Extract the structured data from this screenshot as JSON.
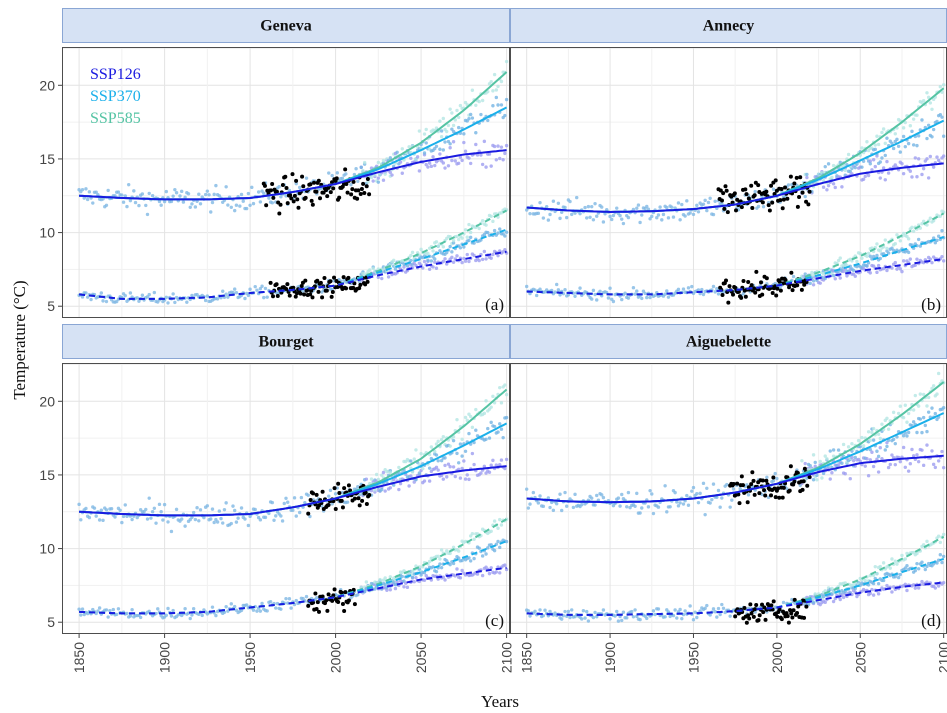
{
  "chart_data": {
    "type": "scatter",
    "xlabel": "Years",
    "ylabel": "Temperature (°C)",
    "xlim": [
      1840,
      2102
    ],
    "ylim": [
      4.2,
      22.6
    ],
    "x_ticks": [
      1850,
      1900,
      1950,
      2000,
      2050,
      2100
    ],
    "y_ticks": [
      5,
      10,
      15,
      20
    ],
    "grid": true,
    "legend": {
      "placement": "top-left of first panel",
      "entries": [
        {
          "name": "SSP126",
          "color": "#1a1ae0"
        },
        {
          "name": "SSP370",
          "color": "#1ab0ea"
        },
        {
          "name": "SSP585",
          "color": "#55c4a4"
        }
      ]
    },
    "observed_color": "#000000",
    "simulated_point_colors": {
      "SSP126": "#9e9ef0",
      "SSP370": "#74b4e4",
      "SSP585": "#b4e6e4"
    },
    "line_styles": {
      "surface": "solid",
      "bottom": "dashed"
    },
    "panels": [
      {
        "title": "Geneva",
        "tag": "(a)",
        "surface_fit": {
          "x": [
            1850,
            1875,
            1900,
            1925,
            1950,
            1975,
            2000,
            2025,
            2050,
            2075,
            2100
          ],
          "SSP126": [
            12.5,
            12.35,
            12.25,
            12.25,
            12.35,
            12.75,
            13.3,
            14.1,
            14.8,
            15.3,
            15.6
          ],
          "SSP370": [
            12.5,
            12.35,
            12.25,
            12.25,
            12.35,
            12.75,
            13.3,
            14.3,
            15.6,
            17.0,
            18.5
          ],
          "SSP585": [
            12.5,
            12.35,
            12.25,
            12.25,
            12.35,
            12.75,
            13.3,
            14.4,
            16.1,
            18.3,
            20.9
          ]
        },
        "bottom_fit": {
          "x": [
            1850,
            1875,
            1900,
            1925,
            1950,
            1975,
            2000,
            2025,
            2050,
            2075,
            2100
          ],
          "SSP126": [
            5.8,
            5.5,
            5.5,
            5.6,
            5.9,
            6.1,
            6.4,
            7.1,
            7.7,
            8.2,
            8.7
          ],
          "SSP370": [
            5.8,
            5.5,
            5.5,
            5.6,
            5.9,
            6.1,
            6.4,
            7.3,
            8.2,
            9.2,
            10.2
          ],
          "SSP585": [
            5.8,
            5.5,
            5.5,
            5.6,
            5.9,
            6.1,
            6.4,
            7.4,
            8.6,
            10.0,
            11.5
          ]
        },
        "observed_surface": {
          "years": [
            1958,
            2020
          ],
          "mean": 12.6,
          "spread": 1.8
        },
        "observed_bottom": {
          "years": [
            1962,
            2020
          ],
          "mean": 6.3,
          "spread": 0.9
        }
      },
      {
        "title": "Annecy",
        "tag": "(b)",
        "surface_fit": {
          "x": [
            1850,
            1875,
            1900,
            1925,
            1950,
            1975,
            2000,
            2025,
            2050,
            2075,
            2100
          ],
          "SSP126": [
            11.7,
            11.5,
            11.4,
            11.45,
            11.6,
            11.9,
            12.5,
            13.3,
            14.0,
            14.4,
            14.7
          ],
          "SSP370": [
            11.7,
            11.5,
            11.4,
            11.45,
            11.6,
            11.9,
            12.5,
            13.6,
            14.9,
            16.2,
            17.6
          ],
          "SSP585": [
            11.7,
            11.5,
            11.4,
            11.45,
            11.6,
            11.9,
            12.5,
            13.7,
            15.4,
            17.5,
            19.8
          ]
        },
        "bottom_fit": {
          "x": [
            1850,
            1875,
            1900,
            1925,
            1950,
            1975,
            2000,
            2025,
            2050,
            2075,
            2100
          ],
          "SSP126": [
            6.0,
            5.9,
            5.8,
            5.8,
            5.95,
            6.1,
            6.4,
            6.9,
            7.4,
            7.8,
            8.2
          ],
          "SSP370": [
            6.0,
            5.9,
            5.8,
            5.8,
            5.95,
            6.1,
            6.4,
            7.1,
            7.9,
            8.8,
            9.7
          ],
          "SSP585": [
            6.0,
            5.9,
            5.8,
            5.8,
            5.95,
            6.1,
            6.4,
            7.3,
            8.4,
            9.8,
            11.3
          ]
        },
        "observed_surface": {
          "years": [
            1965,
            2020
          ],
          "mean": 12.5,
          "spread": 1.7
        },
        "observed_bottom": {
          "years": [
            1966,
            2018
          ],
          "mean": 6.3,
          "spread": 1.2
        }
      },
      {
        "title": "Bourget",
        "tag": "(c)",
        "surface_fit": {
          "x": [
            1850,
            1875,
            1900,
            1925,
            1950,
            1975,
            2000,
            2025,
            2050,
            2075,
            2100
          ],
          "SSP126": [
            12.5,
            12.35,
            12.25,
            12.25,
            12.35,
            12.8,
            13.4,
            14.2,
            14.9,
            15.3,
            15.6
          ],
          "SSP370": [
            12.5,
            12.35,
            12.25,
            12.25,
            12.35,
            12.8,
            13.4,
            14.4,
            15.6,
            17.0,
            18.5
          ],
          "SSP585": [
            12.5,
            12.35,
            12.25,
            12.25,
            12.35,
            12.8,
            13.4,
            14.5,
            16.1,
            18.3,
            20.8
          ]
        },
        "bottom_fit": {
          "x": [
            1850,
            1875,
            1900,
            1925,
            1950,
            1975,
            2000,
            2025,
            2050,
            2075,
            2100
          ],
          "SSP126": [
            5.7,
            5.6,
            5.6,
            5.7,
            6.0,
            6.3,
            6.7,
            7.3,
            7.9,
            8.3,
            8.7
          ],
          "SSP370": [
            5.7,
            5.6,
            5.6,
            5.7,
            6.0,
            6.3,
            6.7,
            7.5,
            8.4,
            9.4,
            10.5
          ],
          "SSP585": [
            5.7,
            5.6,
            5.6,
            5.7,
            6.0,
            6.3,
            6.7,
            7.6,
            8.8,
            10.3,
            12.0
          ]
        },
        "observed_surface": {
          "years": [
            1984,
            2020
          ],
          "mean": 13.4,
          "spread": 1.4
        },
        "observed_bottom": {
          "years": [
            1984,
            2012
          ],
          "mean": 6.3,
          "spread": 1.2
        }
      },
      {
        "title": "Aiguebelette",
        "tag": "(d)",
        "surface_fit": {
          "x": [
            1850,
            1875,
            1900,
            1925,
            1950,
            1975,
            2000,
            2025,
            2050,
            2075,
            2100
          ],
          "SSP126": [
            13.4,
            13.2,
            13.15,
            13.2,
            13.4,
            13.8,
            14.4,
            15.2,
            15.8,
            16.1,
            16.3
          ],
          "SSP370": [
            13.4,
            13.2,
            13.15,
            13.2,
            13.4,
            13.8,
            14.4,
            15.4,
            16.6,
            17.9,
            19.2
          ],
          "SSP585": [
            13.4,
            13.2,
            13.15,
            13.2,
            13.4,
            13.8,
            14.4,
            15.5,
            17.1,
            19.1,
            21.3
          ]
        },
        "bottom_fit": {
          "x": [
            1850,
            1875,
            1900,
            1925,
            1950,
            1975,
            2000,
            2025,
            2050,
            2075,
            2100
          ],
          "SSP126": [
            5.6,
            5.5,
            5.5,
            5.55,
            5.6,
            5.75,
            6.0,
            6.5,
            7.0,
            7.4,
            7.7
          ],
          "SSP370": [
            5.6,
            5.5,
            5.5,
            5.55,
            5.6,
            5.75,
            6.0,
            6.7,
            7.5,
            8.4,
            9.3
          ],
          "SSP585": [
            5.6,
            5.5,
            5.5,
            5.55,
            5.6,
            5.75,
            6.0,
            6.8,
            7.9,
            9.3,
            10.8
          ]
        },
        "observed_surface": {
          "years": [
            1972,
            2020
          ],
          "mean": 14.2,
          "spread": 1.5
        },
        "observed_bottom": {
          "years": [
            1975,
            2018
          ],
          "mean": 5.4,
          "spread": 1.0
        }
      }
    ]
  }
}
